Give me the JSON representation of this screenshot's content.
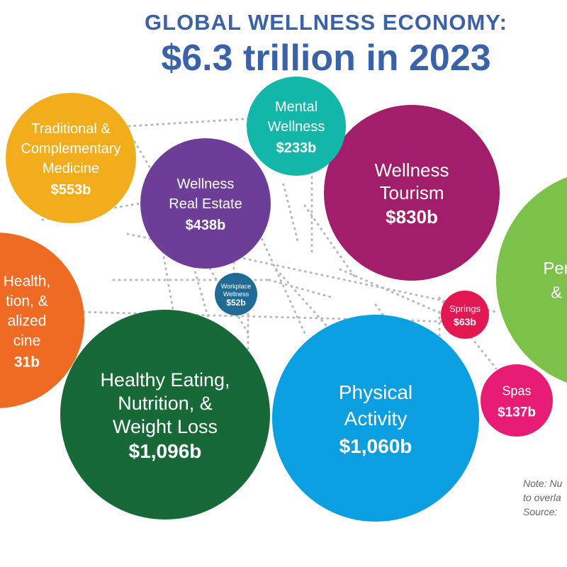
{
  "title": {
    "line1": "GLOBAL WELLNESS ECONOMY:",
    "line2": "$6.3 trillion in 2023"
  },
  "chart_data": {
    "type": "bubble",
    "unit": "USD billions",
    "series": [
      {
        "lines": [
          "Healthy Eating,",
          "Nutrition, &",
          "Weight Loss"
        ],
        "value_label": "$1,096b",
        "value": 1096,
        "color": "#176937"
      },
      {
        "lines": [
          "Physical",
          "Activity"
        ],
        "value_label": "$1,060b",
        "value": 1060,
        "color": "#0a9fe0"
      },
      {
        "lines": [
          "Wellness",
          "Tourism"
        ],
        "value_label": "$830b",
        "value": 830,
        "color": "#a21d6a"
      },
      {
        "lines": [
          "Traditional &",
          "Complementary",
          "Medicine"
        ],
        "value_label": "$553b",
        "value": 553,
        "color": "#f1ad1c"
      },
      {
        "lines": [
          "Wellness",
          "Real Estate"
        ],
        "value_label": "$438b",
        "value": 438,
        "color": "#6d3e98"
      },
      {
        "lines": [
          "Mental",
          "Wellness"
        ],
        "value_label": "$233b",
        "value": 233,
        "color": "#12b7a9"
      },
      {
        "lines": [
          "Spas"
        ],
        "value_label": "$137b",
        "value": 137,
        "color": "#e81c74"
      },
      {
        "lines": [
          "Springs"
        ],
        "value_label": "$63b",
        "value": 63,
        "color": "#e31751"
      },
      {
        "lines": [
          "Workplace",
          "Wellness"
        ],
        "value_label": "$52b",
        "value": 52,
        "color": "#1f6b96"
      },
      {
        "lines": [
          "Health,",
          "tion, &",
          "alized",
          "cine"
        ],
        "value_label": "31b",
        "value": null,
        "color": "#ef6a23"
      },
      {
        "lines": [
          "Per",
          "&"
        ],
        "value_label": "",
        "value": null,
        "color": "#7cc24a"
      }
    ]
  },
  "note": {
    "lines": [
      "Note: Nu",
      "to overla",
      "Source: "
    ]
  }
}
